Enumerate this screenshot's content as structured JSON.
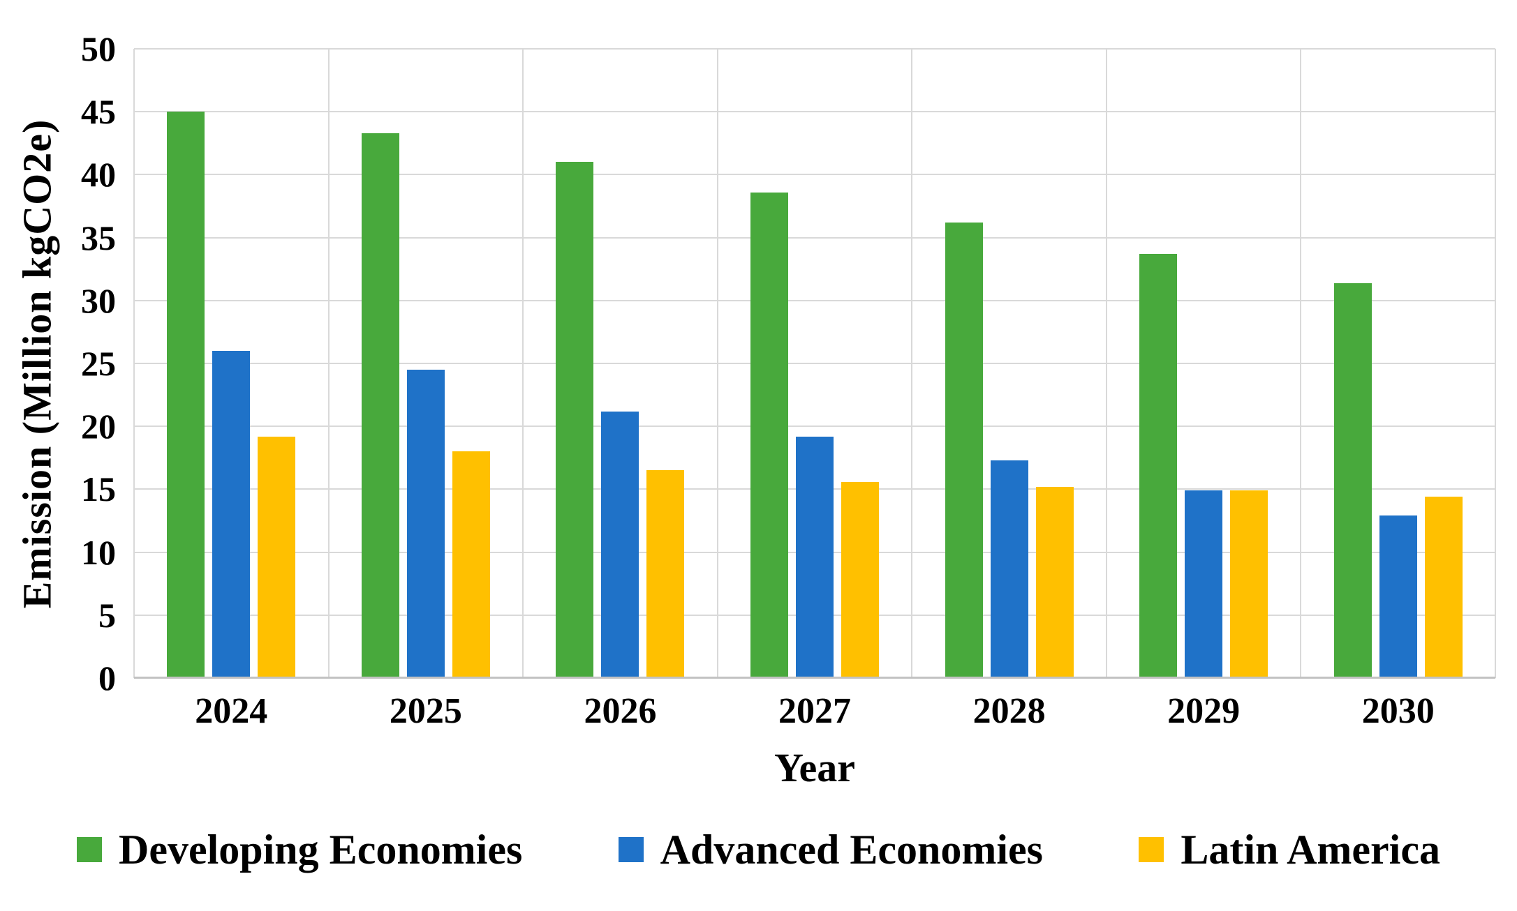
{
  "chart_data": {
    "type": "bar",
    "title": "",
    "categories": [
      "2024",
      "2025",
      "2026",
      "2027",
      "2028",
      "2029",
      "2030"
    ],
    "series": [
      {
        "name": "Developing Economies",
        "color": "#48A93C",
        "values": [
          45.0,
          43.3,
          41.0,
          38.6,
          36.2,
          33.7,
          31.4
        ]
      },
      {
        "name": "Advanced Economies",
        "color": "#1F72C8",
        "values": [
          26.0,
          24.5,
          21.2,
          19.2,
          17.3,
          14.9,
          12.9
        ]
      },
      {
        "name": "Latin America",
        "color": "#FFC000",
        "values": [
          19.2,
          18.0,
          16.5,
          15.6,
          15.2,
          14.9,
          14.4
        ]
      }
    ],
    "xlabel": "Year",
    "ylabel": "Emission (Million kgCO2e)",
    "ylim": [
      0,
      50
    ],
    "ytick_step": 5,
    "ytick_labels": [
      "0",
      "5",
      "10",
      "15",
      "20",
      "25",
      "30",
      "35",
      "40",
      "45",
      "50"
    ],
    "grid": true,
    "grid_color": "#d9d9d9",
    "legend_position": "bottom"
  }
}
